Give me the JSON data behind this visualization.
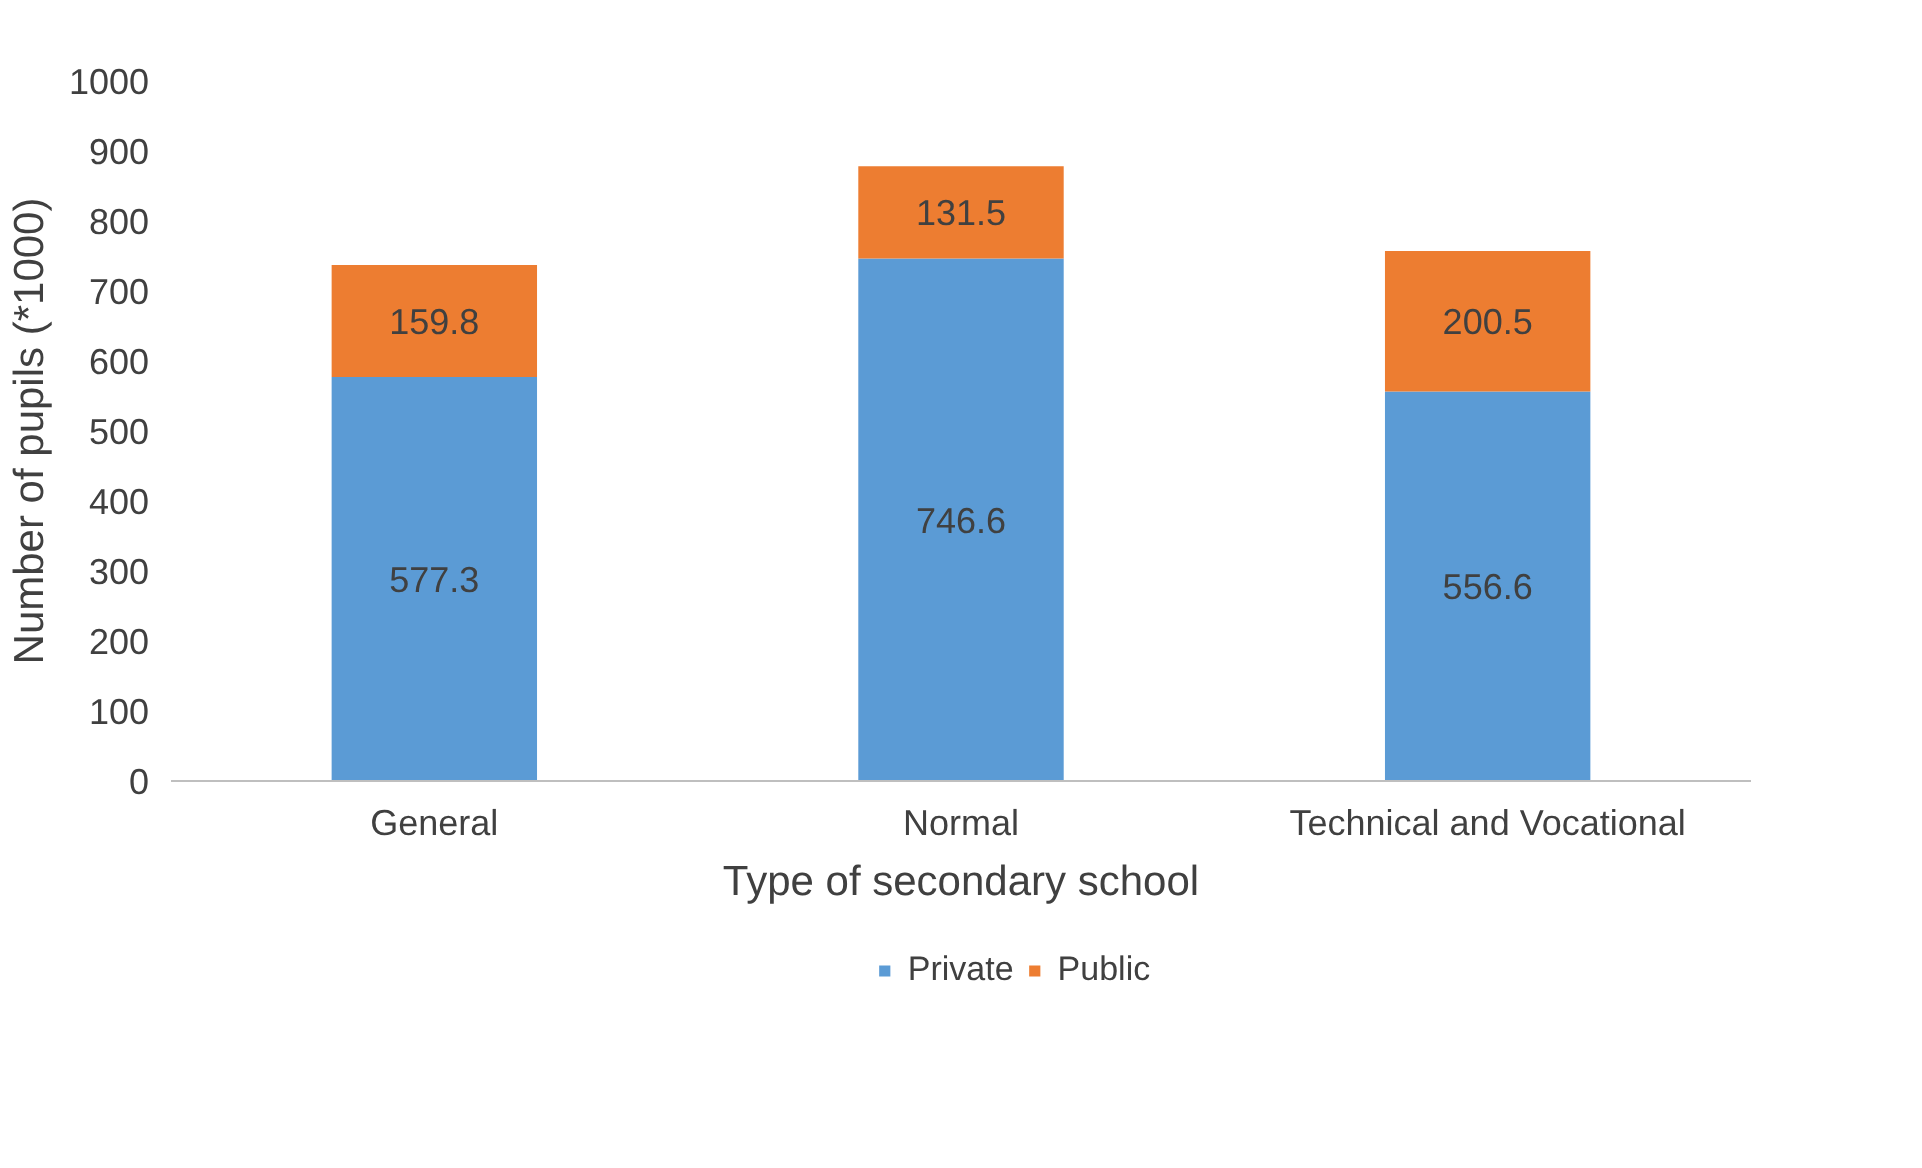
{
  "chart_data": {
    "type": "bar",
    "stacked": true,
    "xlabel": "Type of secondary school",
    "ylabel": "Number of pupils (*1000)",
    "categories": [
      "General",
      "Normal",
      "Technical and Vocational"
    ],
    "series": [
      {
        "name": "Private",
        "color": "#5b9bd5",
        "values": [
          577.3,
          746.6,
          556.6
        ]
      },
      {
        "name": "Public",
        "color": "#ed7d31",
        "values": [
          159.8,
          131.5,
          200.5
        ]
      }
    ],
    "ylim": [
      0,
      1000
    ],
    "yticks": [
      0,
      100,
      200,
      300,
      400,
      500,
      600,
      700,
      800,
      900,
      1000
    ],
    "data_labels": true,
    "legend": "bottom",
    "grid": false
  }
}
